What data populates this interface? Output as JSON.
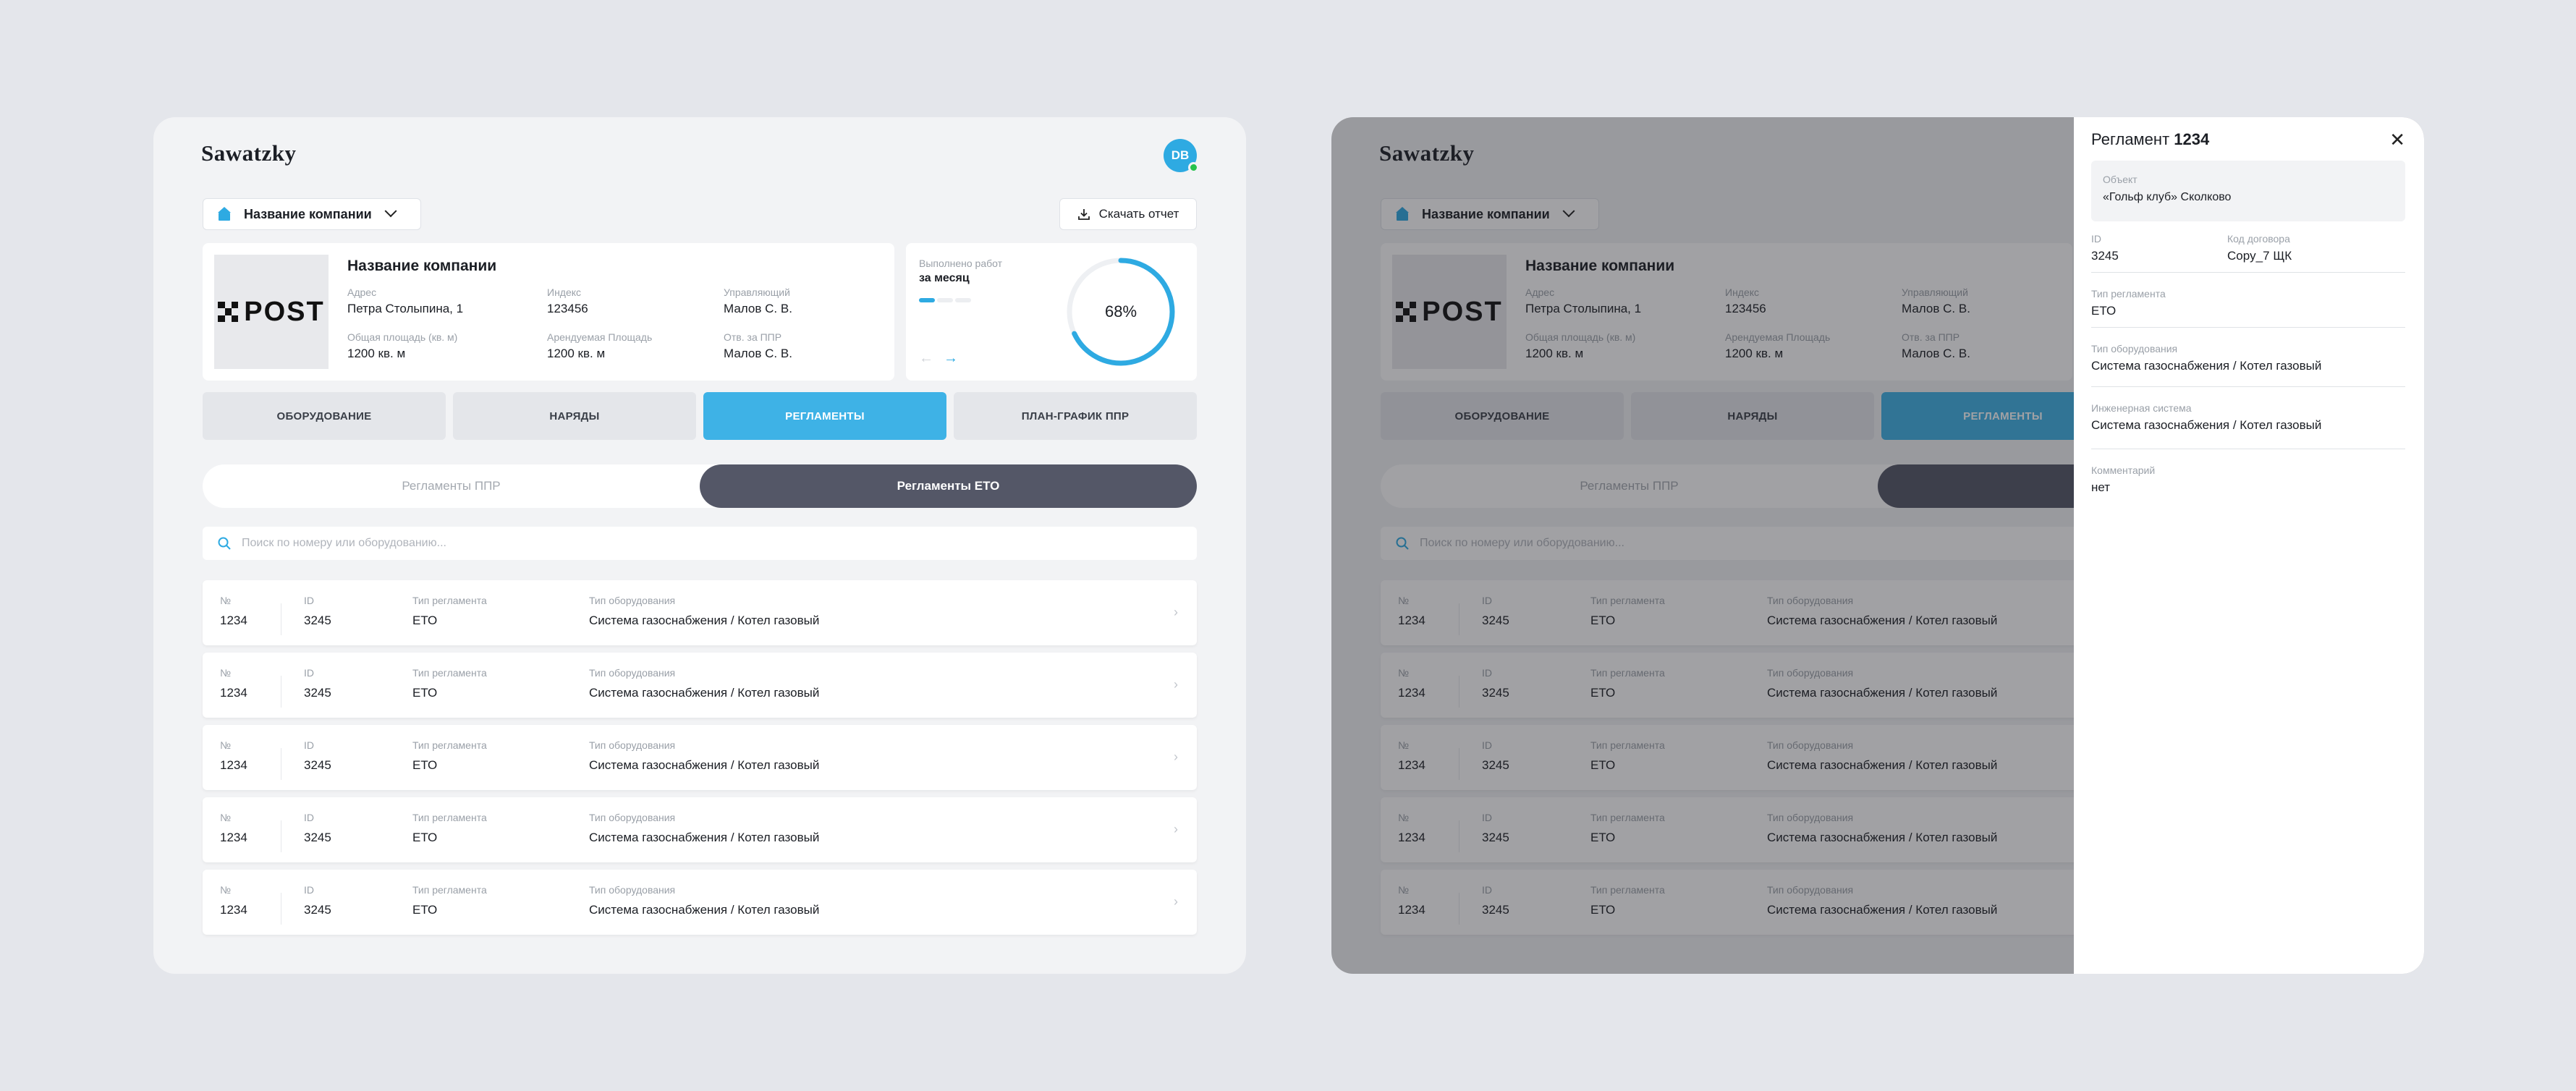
{
  "app": {
    "logo": "Sawatzky",
    "avatar_initials": "DB"
  },
  "company_select": {
    "label": "Название компании"
  },
  "download": {
    "label": "Скачать отчет"
  },
  "company": {
    "logo_text": "POST",
    "name": "Название компании",
    "address_label": "Адрес",
    "address": "Петра Столыпина, 1",
    "index_label": "Индекс",
    "index": "123456",
    "manager_label": "Управляющий",
    "manager": "Малов С. В.",
    "total_area_label": "Общая площадь (кв. м)",
    "total_area": "1200 кв. м",
    "rent_area_label": "Арендуемая Площадь",
    "rent_area": "1200 кв. м",
    "ppr_label": "Отв. за ППР",
    "ppr": "Малов С. В."
  },
  "progress": {
    "label": "Выполнено работ",
    "period": "за месяц",
    "percent_text": "68%",
    "percent": 68,
    "accent": "#2eaae2"
  },
  "tabs": [
    {
      "label": "ОБОРУДОВАНИЕ",
      "active": false
    },
    {
      "label": "НАРЯДЫ",
      "active": false
    },
    {
      "label": "РЕГЛАМЕНТЫ",
      "active": true
    },
    {
      "label": "ПЛАН-ГРАФИК ППР",
      "active": false
    }
  ],
  "segments": [
    {
      "label": "Регламенты ППР",
      "active": false
    },
    {
      "label": "Регламенты ЕТО",
      "active": true
    }
  ],
  "search": {
    "placeholder": "Поиск по номеру или оборудованию..."
  },
  "table": {
    "headers": {
      "num": "№",
      "id": "ID",
      "type": "Тип регламента",
      "equipment": "Тип оборудования"
    },
    "rows": [
      {
        "num": "1234",
        "id": "3245",
        "type": "ЕТО",
        "equipment": "Система газоснабжения / Котел газовый"
      },
      {
        "num": "1234",
        "id": "3245",
        "type": "ЕТО",
        "equipment": "Система газоснабжения / Котел газовый"
      },
      {
        "num": "1234",
        "id": "3245",
        "type": "ЕТО",
        "equipment": "Система газоснабжения / Котел газовый"
      },
      {
        "num": "1234",
        "id": "3245",
        "type": "ЕТО",
        "equipment": "Система газоснабжения / Котел газовый"
      },
      {
        "num": "1234",
        "id": "3245",
        "type": "ЕТО",
        "equipment": "Система газоснабжения / Котел газовый"
      }
    ]
  },
  "drawer": {
    "title_prefix": "Регламент",
    "title_num": "1234",
    "object_label": "Объект",
    "object": "«Гольф клуб» Сколково",
    "id_label": "ID",
    "id": "3245",
    "contract_label": "Код договора",
    "contract": "Copy_7 ЩК",
    "type_label": "Тип регламента",
    "type": "ЕТО",
    "equipment_label": "Тип оборудования",
    "equipment": "Система газоснабжения / Котел газовый",
    "engineering_label": "Инженерная система",
    "engineering": "Система газоснабжения / Котел газовый",
    "comment_label": "Комментарий",
    "comment": "нет"
  }
}
